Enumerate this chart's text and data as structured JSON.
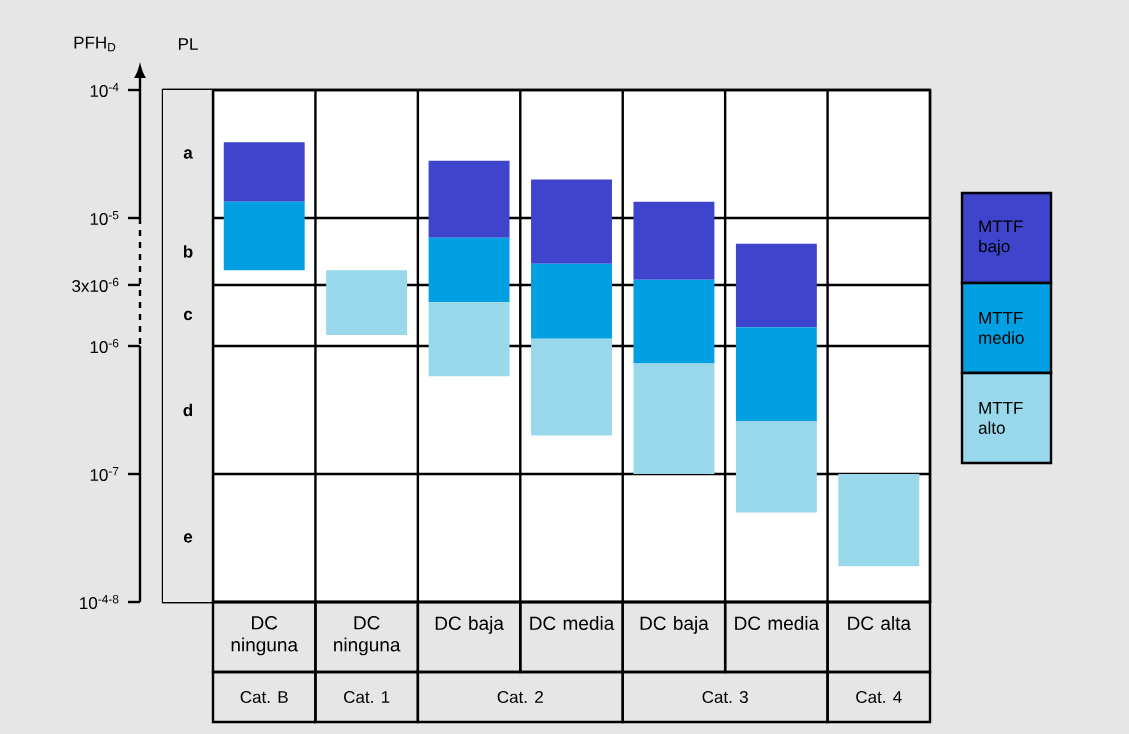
{
  "chart_data": {
    "type": "bar",
    "log": "y",
    "grid": true,
    "legend": "right",
    "ylabel": "PFH$_{D}$",
    "categories": [
      "DC ninguna",
      "DC ninguna",
      "DC baja",
      "DC media",
      "DC baja",
      "DC media",
      "DC alta"
    ],
    "series": [
      {
        "name": "MTTF bajo",
        "color": "#3f44cc",
        "base": [
          1.34e-05,
          null,
          7e-06,
          4.4e-06,
          3.3e-06,
          1.4e-06,
          null
        ],
        "values": [
          2.56e-05,
          null,
          2.1e-05,
          1.56e-05,
          1.01e-05,
          4.9e-06,
          null
        ]
      },
      {
        "name": "MTTF medio",
        "color": "#00a0e3",
        "base": [
          3.9e-06,
          null,
          2.2e-06,
          1.14e-06,
          7.3e-07,
          2.6e-07,
          null
        ],
        "values": [
          9.5e-06,
          null,
          4.8e-06,
          3.26e-06,
          2.57e-06,
          1.14e-06,
          null
        ]
      },
      {
        "name": "MTTF alto",
        "color": "#99d8ea",
        "base": [
          null,
          1.22e-06,
          5.8e-07,
          2e-07,
          1e-07,
          5e-08,
          1.9e-08
        ],
        "values": [
          null,
          2.68e-06,
          1.62e-06,
          9.4e-07,
          6.3e-07,
          2.1e-07,
          8.1e-08
        ]
      }
    ],
    "ylim": [
      1e-08,
      0.0001
    ],
    "yticks": [
      {
        "value": 0.0001,
        "label": "10$^{-4}$"
      },
      {
        "value": 1e-05,
        "label": "10$^{-5}$"
      },
      {
        "value": 3e-06,
        "label": "3x10$^{-6}$"
      },
      {
        "value": 1e-06,
        "label": "10$^{-6}$"
      },
      {
        "value": 1e-07,
        "label": "10$^{-7}$"
      },
      {
        "value": 1e-08,
        "label": "10$^{-4-8}$"
      }
    ],
    "bands": [
      {
        "axis": "y",
        "from": 1e-05,
        "to": 0.0001,
        "label": "a",
        "color": "#e6e6e6"
      },
      {
        "axis": "y",
        "from": 3e-06,
        "to": 1e-05,
        "label": "b",
        "color": "#e6e6e6"
      },
      {
        "axis": "y",
        "from": 1e-06,
        "to": 3e-06,
        "label": "c",
        "color": "#e6e6e6"
      },
      {
        "axis": "y",
        "from": 1e-07,
        "to": 1e-06,
        "label": "d",
        "color": "#e6e6e6"
      },
      {
        "axis": "y",
        "from": 1e-08,
        "to": 1e-07,
        "label": "e",
        "color": "#e6e6e6"
      }
    ],
    "annotations": [
      "PL",
      "Cat. B",
      "Cat. 1",
      "Cat. 2",
      "Cat. 3",
      "Cat. 4"
    ]
  }
}
